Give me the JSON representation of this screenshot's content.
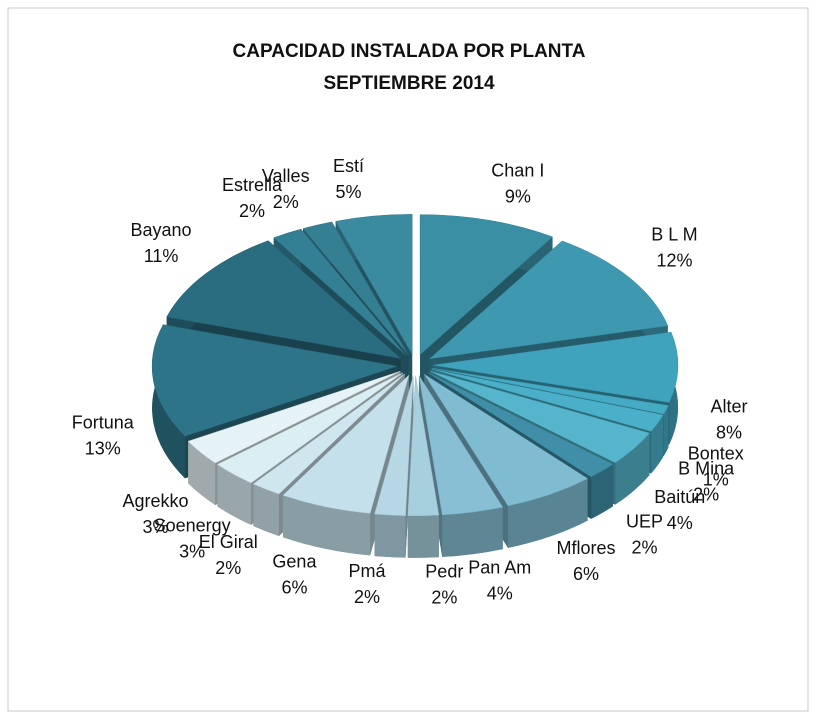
{
  "chart_data": {
    "type": "pie",
    "title": "CAPACIDAD INSTALADA POR PLANTA",
    "subtitle": "SEPTIEMBRE 2014",
    "categories": [
      "Chan I",
      "B L M",
      "Alter",
      "Bontex",
      "B Mina",
      "Baitún",
      "UEP",
      "Mflores",
      "Pan Am",
      "Pedr",
      "Pmá",
      "Gena",
      "El Giral",
      "Soenergy",
      "Agrekko",
      "Fortuna",
      "Bayano",
      "Estrella",
      "Valles",
      "Estí"
    ],
    "values": [
      9,
      12,
      8,
      1,
      2,
      4,
      2,
      6,
      4,
      2,
      2,
      6,
      2,
      3,
      3,
      13,
      11,
      2,
      2,
      5
    ],
    "value_labels": [
      "9%",
      "12%",
      "8%",
      "1%",
      "2%",
      "4%",
      "2%",
      "6%",
      "4%",
      "2%",
      "2%",
      "6%",
      "2%",
      "3%",
      "3%",
      "13%",
      "11%",
      "2%",
      "2%",
      "5%"
    ],
    "colors": [
      "#3b8fa5",
      "#3d98b0",
      "#3fa3bd",
      "#45aac4",
      "#4ab0c9",
      "#55b5cc",
      "#3f8fa8",
      "#7fbcd2",
      "#88bfd4",
      "#a7d0de",
      "#b5d8e4",
      "#c4e0ea",
      "#d0e6ee",
      "#dbeef3",
      "#e5f2f6",
      "#2e7488",
      "#2a6d80",
      "#337f94",
      "#357f93",
      "#3a8aa0"
    ]
  }
}
